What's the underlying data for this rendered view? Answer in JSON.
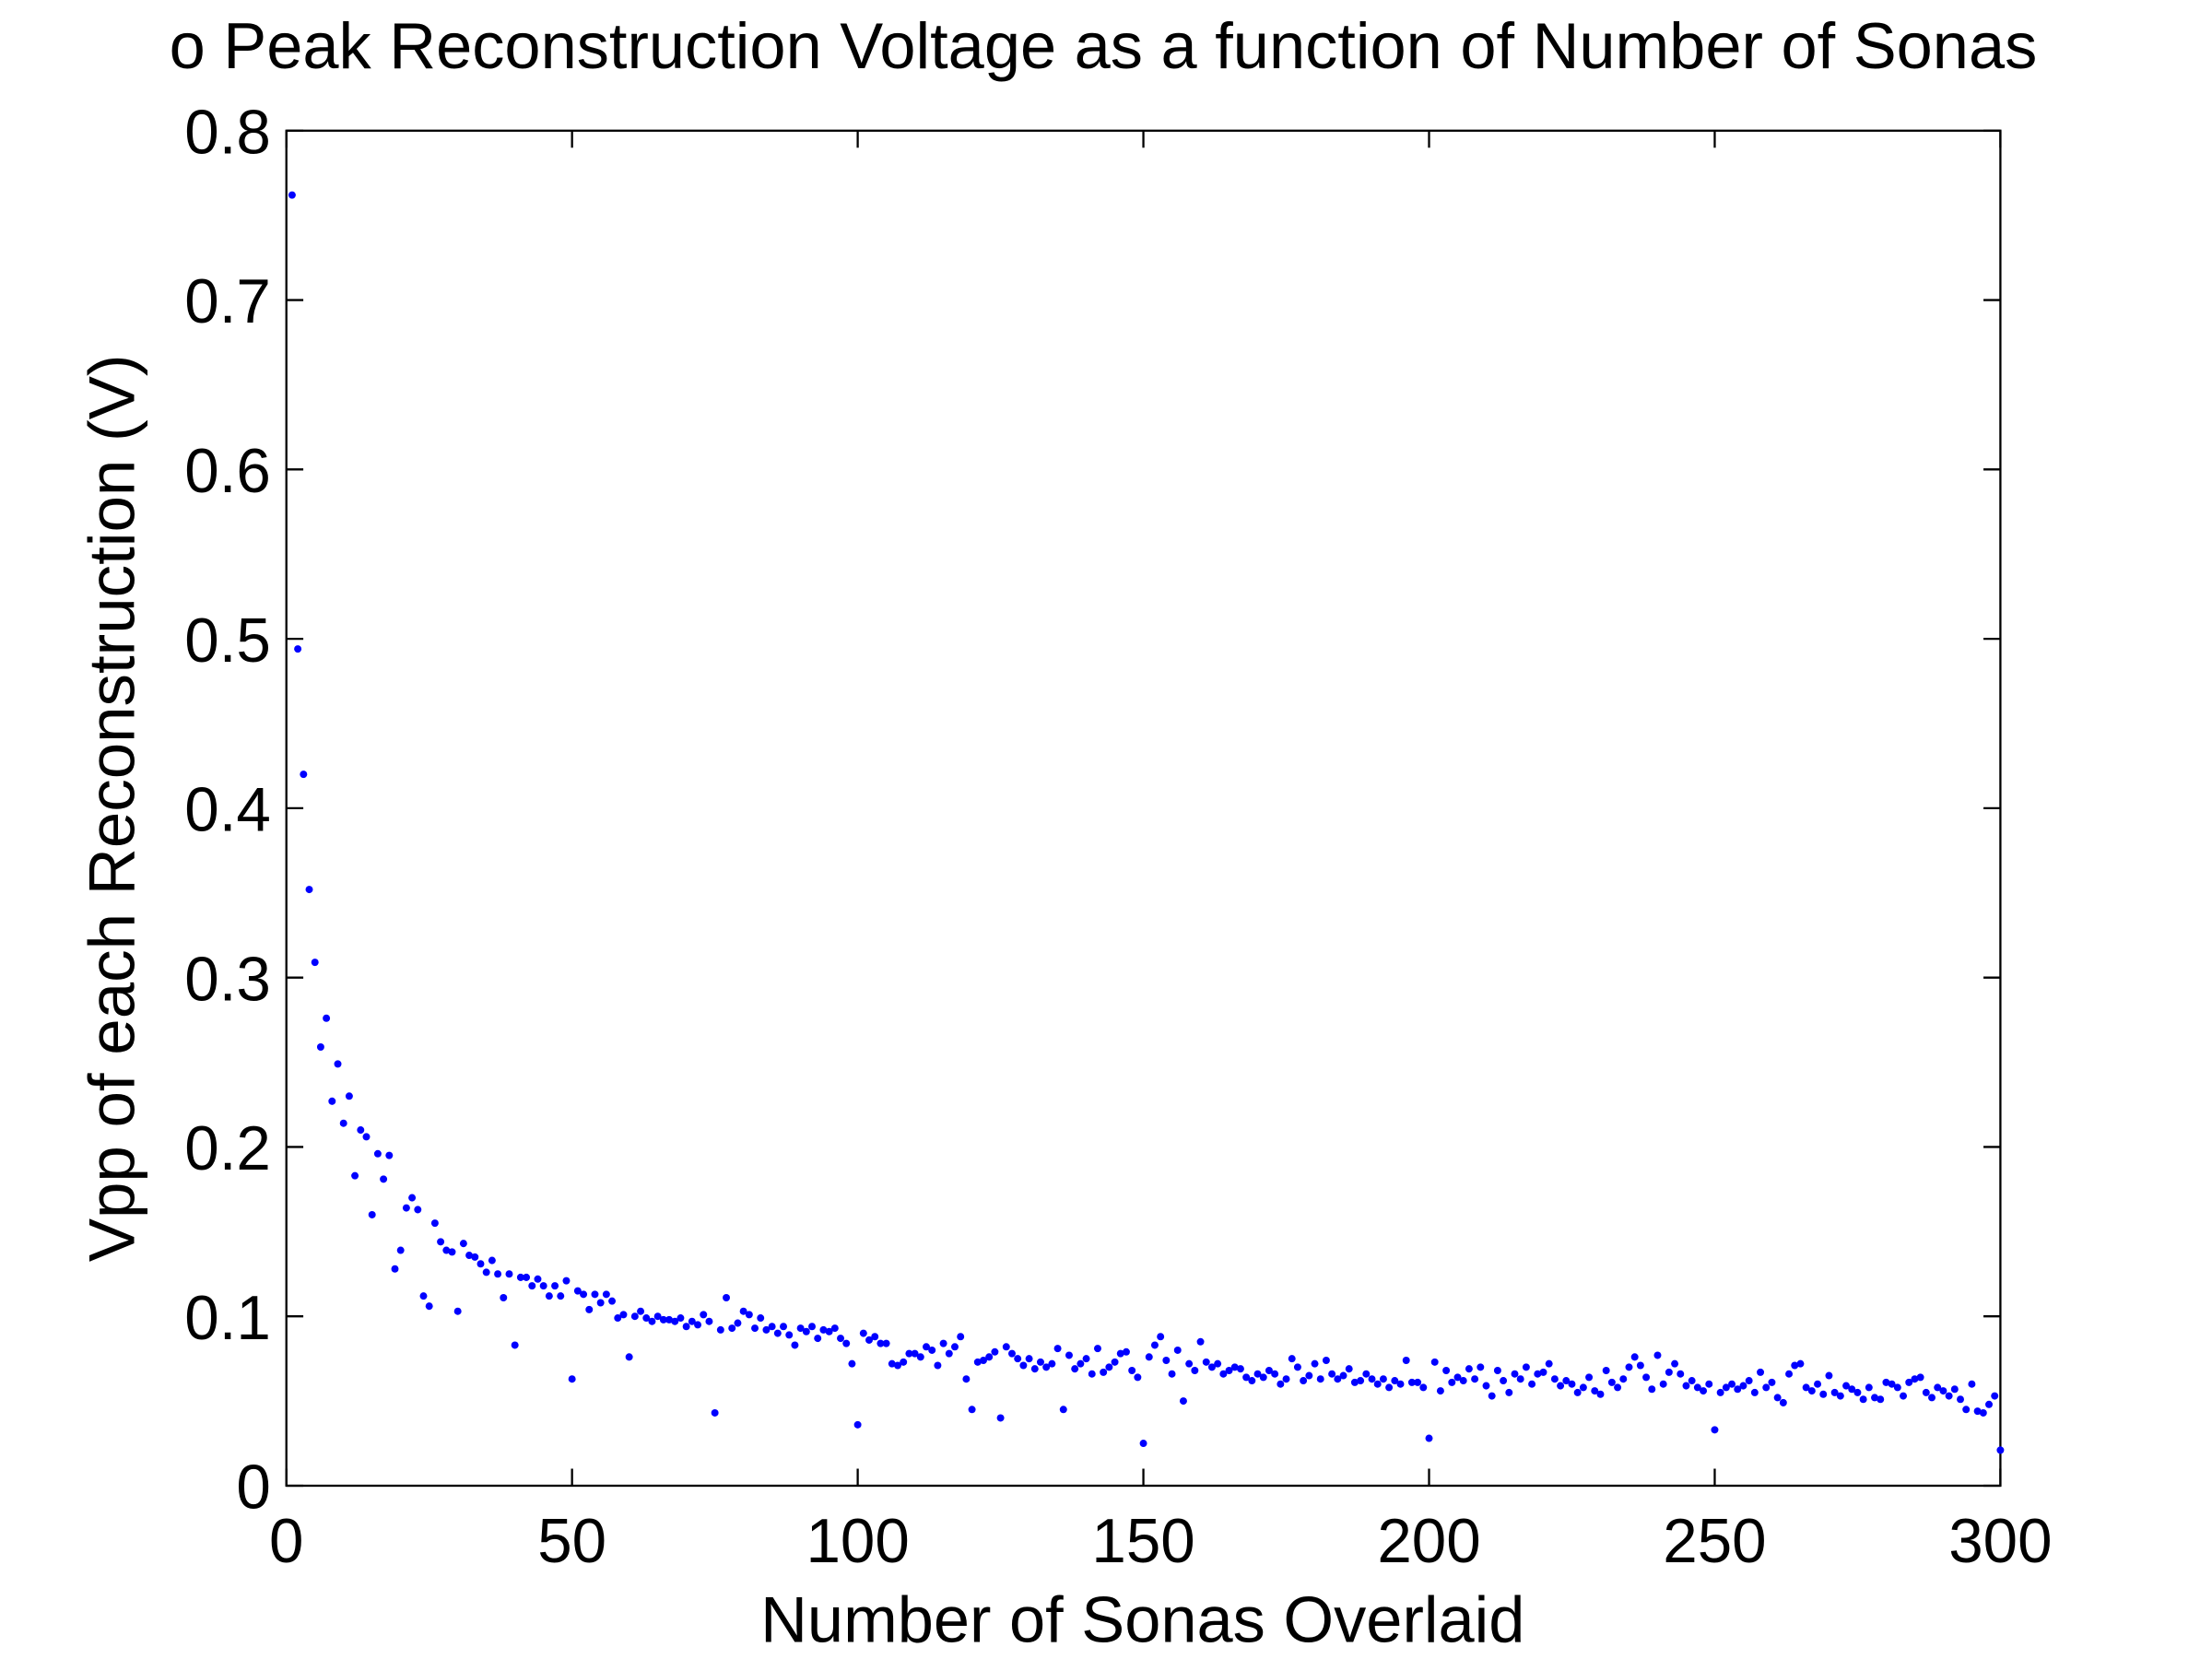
{
  "chart_data": {
    "type": "scatter",
    "title": "o Peak Reconstruction Voltage as a function of Number of Sonas",
    "x_label": "Number of Sonas Overlaid",
    "y_label": "Vpp of each Reconstruction (V)",
    "xlim": [
      0,
      300
    ],
    "xticks": [
      0,
      50,
      100,
      150,
      200,
      250,
      300
    ],
    "ylim": [
      0,
      0.8
    ],
    "yticks": [
      0,
      0.1,
      0.2,
      0.3,
      0.4,
      0.5,
      0.6,
      0.7,
      0.8
    ],
    "series": [
      {
        "color": "#0000ff",
        "x": [
          1,
          2,
          3,
          4,
          5,
          6,
          7,
          8,
          9,
          10,
          11,
          12,
          13,
          14,
          15,
          16,
          17,
          18,
          19,
          20,
          21,
          22,
          23,
          24,
          25,
          26,
          27,
          28,
          29,
          30,
          31,
          32,
          33,
          34,
          35,
          36,
          37,
          38,
          39,
          40,
          41,
          42,
          43,
          44,
          45,
          46,
          47,
          48,
          49,
          50,
          51,
          52,
          53,
          54,
          55,
          56,
          57,
          58,
          59,
          60,
          61,
          62,
          63,
          64,
          65,
          66,
          67,
          68,
          69,
          70,
          71,
          72,
          73,
          74,
          75,
          76,
          77,
          78,
          79,
          80,
          81,
          82,
          83,
          84,
          85,
          86,
          87,
          88,
          89,
          90,
          91,
          92,
          93,
          94,
          95,
          96,
          97,
          98,
          99,
          100,
          101,
          102,
          103,
          104,
          105,
          106,
          107,
          108,
          109,
          110,
          111,
          112,
          113,
          114,
          115,
          116,
          117,
          118,
          119,
          120,
          121,
          122,
          123,
          124,
          125,
          126,
          127,
          128,
          129,
          130,
          131,
          132,
          133,
          134,
          135,
          136,
          137,
          138,
          139,
          140,
          141,
          142,
          143,
          144,
          145,
          146,
          147,
          148,
          149,
          150,
          151,
          152,
          153,
          154,
          155,
          156,
          157,
          158,
          159,
          160,
          161,
          162,
          163,
          164,
          165,
          166,
          167,
          168,
          169,
          170,
          171,
          172,
          173,
          174,
          175,
          176,
          177,
          178,
          179,
          180,
          181,
          182,
          183,
          184,
          185,
          186,
          187,
          188,
          189,
          190,
          191,
          192,
          193,
          194,
          195,
          196,
          197,
          198,
          199,
          200,
          201,
          202,
          203,
          204,
          205,
          206,
          207,
          208,
          209,
          210,
          211,
          212,
          213,
          214,
          215,
          216,
          217,
          218,
          219,
          220,
          221,
          222,
          223,
          224,
          225,
          226,
          227,
          228,
          229,
          230,
          231,
          232,
          233,
          234,
          235,
          236,
          237,
          238,
          239,
          240,
          241,
          242,
          243,
          244,
          245,
          246,
          247,
          248,
          249,
          250,
          251,
          252,
          253,
          254,
          255,
          256,
          257,
          258,
          259,
          260,
          261,
          262,
          263,
          264,
          265,
          266,
          267,
          268,
          269,
          270,
          271,
          272,
          273,
          274,
          275,
          276,
          277,
          278,
          279,
          280,
          281,
          282,
          283,
          284,
          285,
          286,
          287,
          288,
          289,
          290,
          291,
          292,
          293,
          294,
          295,
          296,
          297,
          298,
          299,
          300
        ],
        "values": [
          0.762,
          0.494,
          0.42,
          0.352,
          0.309,
          0.259,
          0.276,
          0.227,
          0.249,
          0.214,
          0.23,
          0.183,
          0.21,
          0.206,
          0.16,
          0.196,
          0.181,
          0.195,
          0.128,
          0.139,
          0.164,
          0.17,
          0.163,
          0.112,
          0.106,
          0.155,
          0.144,
          0.139,
          0.138,
          0.103,
          0.143,
          0.136,
          0.135,
          0.131,
          0.126,
          0.133,
          0.125,
          0.111,
          0.125,
          0.083,
          0.123,
          0.123,
          0.118,
          0.122,
          0.118,
          0.112,
          0.118,
          0.112,
          0.121,
          0.063,
          0.115,
          0.113,
          0.104,
          0.113,
          0.108,
          0.113,
          0.109,
          0.099,
          0.101,
          0.076,
          0.1,
          0.103,
          0.099,
          0.097,
          0.1,
          0.098,
          0.098,
          0.097,
          0.099,
          0.094,
          0.097,
          0.095,
          0.101,
          0.097,
          0.043,
          0.092,
          0.111,
          0.093,
          0.096,
          0.103,
          0.101,
          0.093,
          0.099,
          0.092,
          0.094,
          0.09,
          0.094,
          0.089,
          0.083,
          0.093,
          0.091,
          0.094,
          0.087,
          0.092,
          0.091,
          0.093,
          0.087,
          0.084,
          0.072,
          0.036,
          0.09,
          0.086,
          0.088,
          0.084,
          0.084,
          0.072,
          0.071,
          0.073,
          0.078,
          0.078,
          0.076,
          0.082,
          0.08,
          0.071,
          0.084,
          0.078,
          0.082,
          0.088,
          0.063,
          0.045,
          0.073,
          0.074,
          0.076,
          0.079,
          0.04,
          0.082,
          0.078,
          0.075,
          0.071,
          0.075,
          0.069,
          0.073,
          0.07,
          0.072,
          0.081,
          0.045,
          0.077,
          0.069,
          0.072,
          0.075,
          0.066,
          0.081,
          0.067,
          0.07,
          0.073,
          0.078,
          0.079,
          0.068,
          0.064,
          0.025,
          0.076,
          0.083,
          0.088,
          0.074,
          0.066,
          0.08,
          0.05,
          0.072,
          0.068,
          0.085,
          0.073,
          0.07,
          0.072,
          0.066,
          0.068,
          0.07,
          0.069,
          0.064,
          0.062,
          0.066,
          0.064,
          0.068,
          0.066,
          0.06,
          0.063,
          0.075,
          0.07,
          0.062,
          0.065,
          0.072,
          0.063,
          0.074,
          0.066,
          0.063,
          0.065,
          0.069,
          0.061,
          0.062,
          0.066,
          0.063,
          0.06,
          0.063,
          0.058,
          0.062,
          0.06,
          0.074,
          0.061,
          0.061,
          0.058,
          0.028,
          0.073,
          0.056,
          0.068,
          0.061,
          0.064,
          0.062,
          0.069,
          0.063,
          0.07,
          0.059,
          0.053,
          0.068,
          0.062,
          0.055,
          0.066,
          0.063,
          0.07,
          0.06,
          0.066,
          0.067,
          0.072,
          0.063,
          0.059,
          0.062,
          0.06,
          0.055,
          0.058,
          0.064,
          0.056,
          0.054,
          0.068,
          0.061,
          0.058,
          0.063,
          0.07,
          0.076,
          0.071,
          0.064,
          0.057,
          0.077,
          0.06,
          0.067,
          0.072,
          0.066,
          0.059,
          0.062,
          0.058,
          0.056,
          0.06,
          0.033,
          0.055,
          0.058,
          0.06,
          0.057,
          0.059,
          0.062,
          0.055,
          0.067,
          0.058,
          0.061,
          0.052,
          0.049,
          0.066,
          0.071,
          0.072,
          0.058,
          0.056,
          0.06,
          0.054,
          0.065,
          0.055,
          0.053,
          0.059,
          0.057,
          0.055,
          0.051,
          0.058,
          0.052,
          0.051,
          0.061,
          0.06,
          0.058,
          0.053,
          0.061,
          0.063,
          0.064,
          0.055,
          0.052,
          0.058,
          0.056,
          0.053,
          0.057,
          0.051,
          0.045,
          0.06,
          0.044,
          0.043,
          0.048,
          0.053,
          0.021
        ]
      }
    ]
  }
}
